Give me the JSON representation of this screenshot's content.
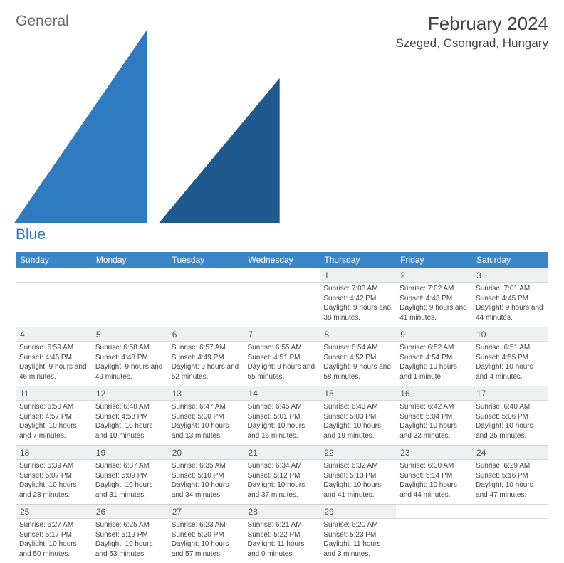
{
  "logo": {
    "general": "General",
    "blue": "Blue"
  },
  "title": "February 2024",
  "location": "Szeged, Csongrad, Hungary",
  "weekdays": [
    "Sunday",
    "Monday",
    "Tuesday",
    "Wednesday",
    "Thursday",
    "Friday",
    "Saturday"
  ],
  "colors": {
    "header_bg": "#3a86c8",
    "header_text": "#ffffff",
    "daynum_bg": "#eef0f2",
    "text": "#444444",
    "border": "#d9d9d9"
  },
  "font": {
    "family": "Arial",
    "title_size": 26,
    "location_size": 17,
    "weekday_size": 12,
    "daynum_size": 12,
    "body_size": 10
  },
  "weeks": [
    [
      null,
      null,
      null,
      null,
      {
        "n": "1",
        "sr": "Sunrise: 7:03 AM",
        "ss": "Sunset: 4:42 PM",
        "dl": "Daylight: 9 hours and 38 minutes."
      },
      {
        "n": "2",
        "sr": "Sunrise: 7:02 AM",
        "ss": "Sunset: 4:43 PM",
        "dl": "Daylight: 9 hours and 41 minutes."
      },
      {
        "n": "3",
        "sr": "Sunrise: 7:01 AM",
        "ss": "Sunset: 4:45 PM",
        "dl": "Daylight: 9 hours and 44 minutes."
      }
    ],
    [
      {
        "n": "4",
        "sr": "Sunrise: 6:59 AM",
        "ss": "Sunset: 4:46 PM",
        "dl": "Daylight: 9 hours and 46 minutes."
      },
      {
        "n": "5",
        "sr": "Sunrise: 6:58 AM",
        "ss": "Sunset: 4:48 PM",
        "dl": "Daylight: 9 hours and 49 minutes."
      },
      {
        "n": "6",
        "sr": "Sunrise: 6:57 AM",
        "ss": "Sunset: 4:49 PM",
        "dl": "Daylight: 9 hours and 52 minutes."
      },
      {
        "n": "7",
        "sr": "Sunrise: 6:55 AM",
        "ss": "Sunset: 4:51 PM",
        "dl": "Daylight: 9 hours and 55 minutes."
      },
      {
        "n": "8",
        "sr": "Sunrise: 6:54 AM",
        "ss": "Sunset: 4:52 PM",
        "dl": "Daylight: 9 hours and 58 minutes."
      },
      {
        "n": "9",
        "sr": "Sunrise: 6:52 AM",
        "ss": "Sunset: 4:54 PM",
        "dl": "Daylight: 10 hours and 1 minute."
      },
      {
        "n": "10",
        "sr": "Sunrise: 6:51 AM",
        "ss": "Sunset: 4:55 PM",
        "dl": "Daylight: 10 hours and 4 minutes."
      }
    ],
    [
      {
        "n": "11",
        "sr": "Sunrise: 6:50 AM",
        "ss": "Sunset: 4:57 PM",
        "dl": "Daylight: 10 hours and 7 minutes."
      },
      {
        "n": "12",
        "sr": "Sunrise: 6:48 AM",
        "ss": "Sunset: 4:58 PM",
        "dl": "Daylight: 10 hours and 10 minutes."
      },
      {
        "n": "13",
        "sr": "Sunrise: 6:47 AM",
        "ss": "Sunset: 5:00 PM",
        "dl": "Daylight: 10 hours and 13 minutes."
      },
      {
        "n": "14",
        "sr": "Sunrise: 6:45 AM",
        "ss": "Sunset: 5:01 PM",
        "dl": "Daylight: 10 hours and 16 minutes."
      },
      {
        "n": "15",
        "sr": "Sunrise: 6:43 AM",
        "ss": "Sunset: 5:03 PM",
        "dl": "Daylight: 10 hours and 19 minutes."
      },
      {
        "n": "16",
        "sr": "Sunrise: 6:42 AM",
        "ss": "Sunset: 5:04 PM",
        "dl": "Daylight: 10 hours and 22 minutes."
      },
      {
        "n": "17",
        "sr": "Sunrise: 6:40 AM",
        "ss": "Sunset: 5:06 PM",
        "dl": "Daylight: 10 hours and 25 minutes."
      }
    ],
    [
      {
        "n": "18",
        "sr": "Sunrise: 6:39 AM",
        "ss": "Sunset: 5:07 PM",
        "dl": "Daylight: 10 hours and 28 minutes."
      },
      {
        "n": "19",
        "sr": "Sunrise: 6:37 AM",
        "ss": "Sunset: 5:09 PM",
        "dl": "Daylight: 10 hours and 31 minutes."
      },
      {
        "n": "20",
        "sr": "Sunrise: 6:35 AM",
        "ss": "Sunset: 5:10 PM",
        "dl": "Daylight: 10 hours and 34 minutes."
      },
      {
        "n": "21",
        "sr": "Sunrise: 6:34 AM",
        "ss": "Sunset: 5:12 PM",
        "dl": "Daylight: 10 hours and 37 minutes."
      },
      {
        "n": "22",
        "sr": "Sunrise: 6:32 AM",
        "ss": "Sunset: 5:13 PM",
        "dl": "Daylight: 10 hours and 41 minutes."
      },
      {
        "n": "23",
        "sr": "Sunrise: 6:30 AM",
        "ss": "Sunset: 5:14 PM",
        "dl": "Daylight: 10 hours and 44 minutes."
      },
      {
        "n": "24",
        "sr": "Sunrise: 6:29 AM",
        "ss": "Sunset: 5:16 PM",
        "dl": "Daylight: 10 hours and 47 minutes."
      }
    ],
    [
      {
        "n": "25",
        "sr": "Sunrise: 6:27 AM",
        "ss": "Sunset: 5:17 PM",
        "dl": "Daylight: 10 hours and 50 minutes."
      },
      {
        "n": "26",
        "sr": "Sunrise: 6:25 AM",
        "ss": "Sunset: 5:19 PM",
        "dl": "Daylight: 10 hours and 53 minutes."
      },
      {
        "n": "27",
        "sr": "Sunrise: 6:23 AM",
        "ss": "Sunset: 5:20 PM",
        "dl": "Daylight: 10 hours and 57 minutes."
      },
      {
        "n": "28",
        "sr": "Sunrise: 6:21 AM",
        "ss": "Sunset: 5:22 PM",
        "dl": "Daylight: 11 hours and 0 minutes."
      },
      {
        "n": "29",
        "sr": "Sunrise: 6:20 AM",
        "ss": "Sunset: 5:23 PM",
        "dl": "Daylight: 11 hours and 3 minutes."
      },
      null,
      null
    ]
  ]
}
